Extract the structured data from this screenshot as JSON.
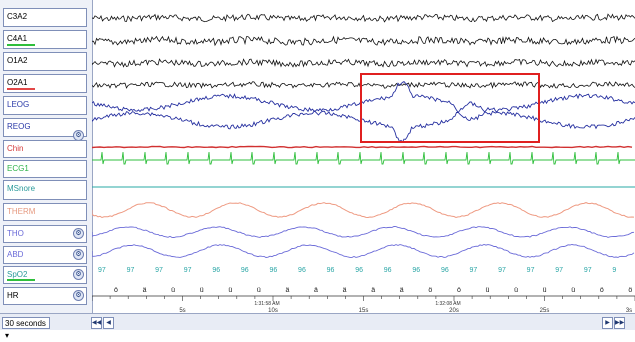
{
  "channels": [
    {
      "label": "C3A2",
      "label_color": "#000000",
      "bar_color": null,
      "icon": null
    },
    {
      "label": "C4A1",
      "label_color": "#000000",
      "bar_color": "#2fbf3c",
      "icon": null
    },
    {
      "label": "O1A2",
      "label_color": "#000000",
      "bar_color": null,
      "icon": null
    },
    {
      "label": "O2A1",
      "label_color": "#000000",
      "bar_color": "#e24747",
      "icon": null
    },
    {
      "label": "LEOG",
      "label_color": "#2b3aa8",
      "bar_color": null,
      "icon": null
    },
    {
      "label": "REOG",
      "label_color": "#2b3aa8",
      "bar_color": null,
      "icon": "settings-icon"
    },
    {
      "label": "Chin",
      "label_color": "#d43a3a",
      "bar_color": null,
      "icon": null
    },
    {
      "label": "ECG1",
      "label_color": "#2fb34a",
      "bar_color": null,
      "icon": null
    },
    {
      "label": "MSnore",
      "label_color": "#2a9a9a",
      "bar_color": null,
      "icon": null
    },
    {
      "label": "THERM",
      "label_color": "#e69a80",
      "bar_color": null,
      "icon": null
    },
    {
      "label": "THO",
      "label_color": "#6a6ad8",
      "bar_color": null,
      "icon": "settings-icon"
    },
    {
      "label": "ABD",
      "label_color": "#6a6ad8",
      "bar_color": null,
      "icon": "settings-icon"
    },
    {
      "label": "SpO2",
      "label_color": "#2a9a9a",
      "bar_color": "#2fbf3c",
      "icon": "settings-icon"
    },
    {
      "label": "HR",
      "label_color": "#000000",
      "bar_color": null,
      "icon": "settings-icon"
    }
  ],
  "spo2_values": [
    "97",
    "97",
    "97",
    "97",
    "96",
    "96",
    "96",
    "96",
    "96",
    "96",
    "96",
    "96",
    "96",
    "97",
    "97",
    "97",
    "97",
    "97",
    "9"
  ],
  "hr_symbols": [
    "ö",
    "ä",
    "ü",
    "ü",
    "ü",
    "ü",
    "ä",
    "ä",
    "ä",
    "ä",
    "ä",
    "ö",
    "ö",
    "ü",
    "ü",
    "ü",
    "ü",
    "ö",
    "ö"
  ],
  "time_axis": {
    "ticks": [
      "5s",
      "10s",
      "15s",
      "20s",
      "25s"
    ],
    "clock": [
      "1:31:58 AM",
      "1:32:08 AM"
    ],
    "end_label": "3s"
  },
  "footer": {
    "epoch": "30 seconds",
    "nav_left": [
      "◀◀",
      "◀"
    ],
    "nav_right": [
      "▶",
      "▶▶"
    ]
  },
  "colors": {
    "eeg": "#111111",
    "eog": "#2630a0",
    "chin": "#d13030",
    "ecg": "#2fbf3c",
    "snore": "#2aaaa5",
    "therm": "#ee9a82",
    "resp": "#6a6ad8",
    "spo2": "#2aa6a6",
    "highlight": "#e02020"
  }
}
